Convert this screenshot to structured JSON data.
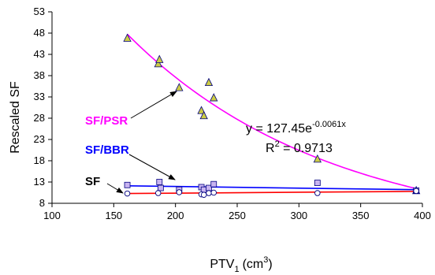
{
  "chart_data": {
    "type": "scatter",
    "xlabel": "PTV",
    "xlabel_sub": "1",
    "xlabel_unit": "(cm",
    "xlabel_unit_sup": "3",
    "xlabel_close": ")",
    "ylabel": "Rescaled SF",
    "xlim": [
      100,
      400
    ],
    "ylim": [
      8,
      53
    ],
    "xticks": [
      100,
      150,
      200,
      250,
      300,
      350,
      400
    ],
    "yticks": [
      8,
      13,
      18,
      23,
      28,
      33,
      38,
      43,
      48,
      53
    ],
    "grid": false,
    "legend": "none",
    "series": [
      {
        "name": "SF/PSR",
        "marker": "triangle",
        "color": "#ff00ff",
        "marker_fill": "#cccc44",
        "label_color": "#ff00ff",
        "x": [
          161,
          186,
          187,
          203,
          221,
          223,
          227,
          231,
          315,
          395
        ],
        "y": [
          46.8,
          40.8,
          41.8,
          35.2,
          29.8,
          28.6,
          36.4,
          32.8,
          18.4,
          11.0
        ],
        "fit": {
          "type": "exponential",
          "a": 127.45,
          "b": -0.0061
        }
      },
      {
        "name": "SF/BBR",
        "marker": "square",
        "color": "#0000ff",
        "marker_fill": "#c8b4f0",
        "label_color": "#0000ff",
        "x": [
          161,
          187,
          188,
          203,
          221,
          223,
          227,
          231,
          315,
          395
        ],
        "y": [
          12.3,
          13.0,
          11.6,
          11.2,
          11.8,
          11.2,
          11.6,
          12.5,
          12.8,
          11.0
        ],
        "fit": {
          "type": "linear",
          "x": [
            161,
            395
          ],
          "y": [
            12.1,
            11.2
          ]
        }
      },
      {
        "name": "SF",
        "marker": "circle",
        "color": "#ff0000",
        "marker_fill": "#ffffff",
        "label_color": "#000000",
        "x": [
          161,
          186,
          203,
          221,
          223,
          227,
          231,
          315,
          395
        ],
        "y": [
          10.3,
          10.4,
          10.6,
          10.1,
          10.0,
          10.4,
          10.5,
          10.4,
          10.9
        ],
        "fit": {
          "type": "linear",
          "x": [
            161,
            395
          ],
          "y": [
            10.3,
            10.8
          ]
        }
      }
    ],
    "annotations": {
      "equation_prefix": "y = 127.45e",
      "equation_exponent": "-0.0061x",
      "r2_prefix": "R",
      "r2_sup": "2",
      "r2_value": " = 0.9713"
    }
  }
}
